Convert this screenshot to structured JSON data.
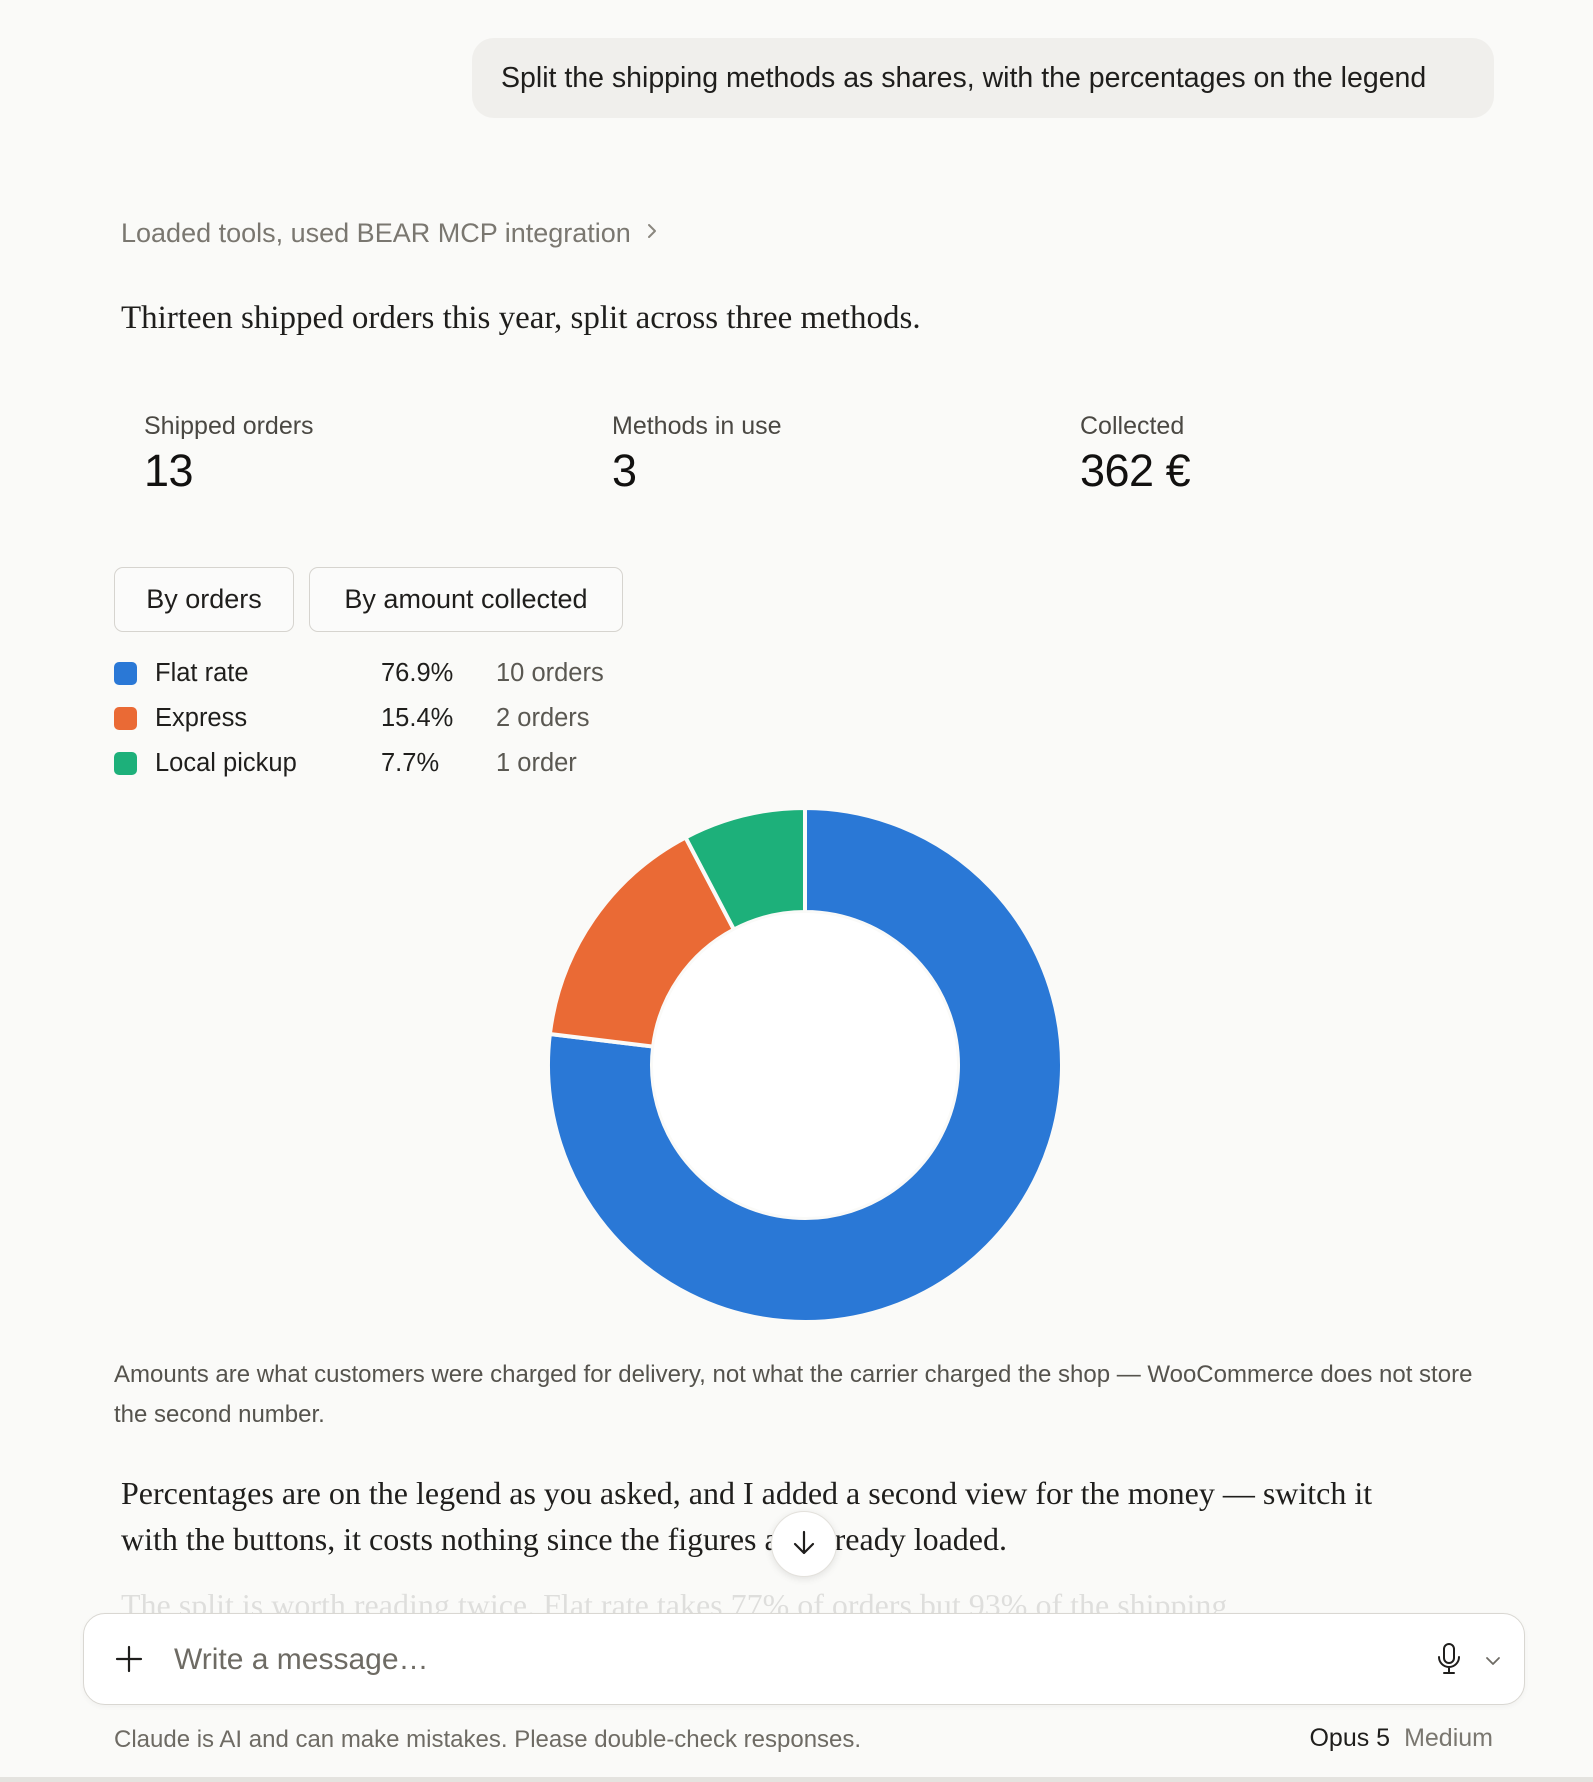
{
  "conversation": {
    "user_message": "Split the shipping methods as shares, with the percentages on the legend",
    "tool_status": "Loaded tools, used BEAR MCP integration",
    "intro": "Thirteen shipped orders this year, split across three methods."
  },
  "stats": [
    {
      "label": "Shipped orders",
      "value": "13"
    },
    {
      "label": "Methods in use",
      "value": "3"
    },
    {
      "label": "Collected",
      "value": "362 €"
    }
  ],
  "view_tabs": {
    "by_orders": "By orders",
    "by_amount": "By amount collected"
  },
  "chart_data": {
    "type": "pie",
    "categories": [
      "Flat rate",
      "Express",
      "Local pickup"
    ],
    "values": [
      10,
      2,
      1
    ],
    "percent_labels": [
      "76.9%",
      "15.4%",
      "7.7%"
    ],
    "count_labels": [
      "10 orders",
      "2 orders",
      "1 order"
    ],
    "colors": [
      "#2A78D6",
      "#EA6A35",
      "#1DB07A"
    ],
    "donut": true,
    "legend_position": "top-left"
  },
  "note": "Amounts are what customers were charged for delivery, not what the carrier charged the shop — WooCommerce does not store the second number.",
  "reply_paragraph": "Percentages are on the legend as you asked, and I added a second view for the money — switch it with the buttons, it costs nothing since the figures are already loaded.",
  "faded_line": "The split is worth reading twice. Flat rate takes 77% of orders but 93% of the shipping",
  "composer": {
    "placeholder": "Write a message…"
  },
  "footer": {
    "disclaimer": "Claude is AI and can make mistakes. Please double-check responses.",
    "model_name": "Opus 5",
    "model_effort": "Medium"
  },
  "icons": {
    "tools_chevron": "chevron-right-icon",
    "scroll_down": "arrow-down-icon",
    "attach": "plus-icon",
    "voice": "microphone-icon",
    "model_menu": "chevron-down-icon"
  }
}
